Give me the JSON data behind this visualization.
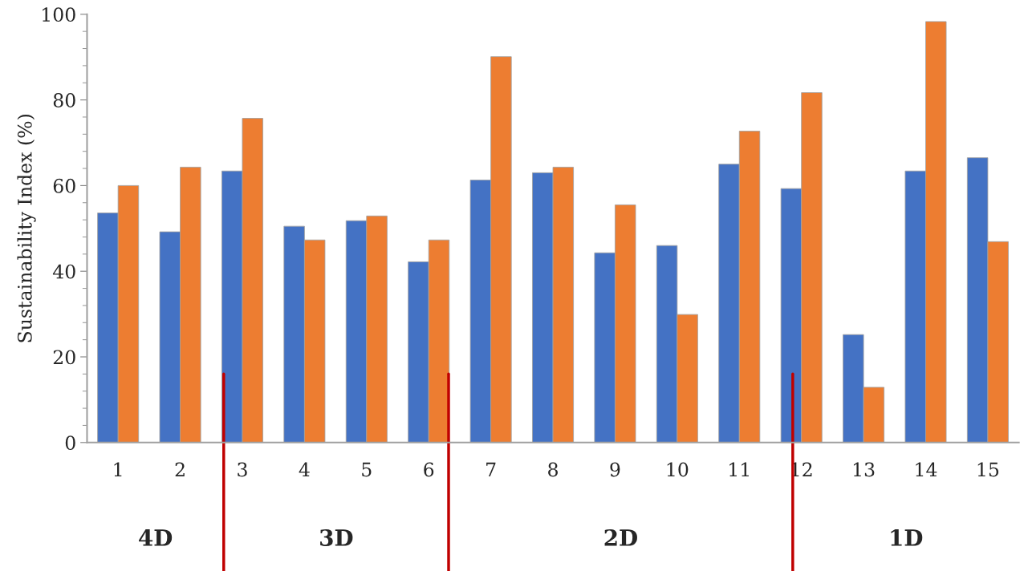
{
  "chart_data": {
    "type": "bar",
    "ylabel": "Sustainability Index (%)",
    "x": [
      1,
      2,
      3,
      4,
      5,
      6,
      7,
      8,
      9,
      10,
      11,
      12,
      13,
      14,
      15
    ],
    "xlim": [
      0.5,
      15.5
    ],
    "xticks": [
      1,
      2,
      3,
      4,
      5,
      6,
      7,
      8,
      9,
      10,
      11,
      12,
      13,
      14,
      15
    ],
    "ylim": [
      0,
      100
    ],
    "yticks": [
      0,
      20,
      40,
      60,
      80,
      100
    ],
    "series": [
      {
        "color": "#4472c4",
        "values": [
          53.6,
          49.2,
          63.4,
          50.5,
          51.8,
          42.2,
          61.3,
          63.0,
          44.3,
          46.0,
          65.0,
          59.3,
          25.2,
          63.4,
          66.5
        ]
      },
      {
        "color": "#ed7d31",
        "values": [
          60.0,
          64.3,
          75.7,
          47.3,
          52.9,
          47.3,
          90.1,
          64.3,
          55.5,
          29.9,
          72.7,
          81.7,
          12.9,
          98.3,
          46.9
        ]
      }
    ],
    "ref_lines": [
      {
        "axis": "x",
        "value": 2.7,
        "color": "#c00000"
      },
      {
        "axis": "x",
        "value": 6.32,
        "color": "#c00000"
      },
      {
        "axis": "x",
        "value": 11.86,
        "color": "#c00000"
      }
    ],
    "annotations": [
      "4D",
      "3D",
      "2D",
      "1D"
    ],
    "grid": false,
    "legend": false
  }
}
